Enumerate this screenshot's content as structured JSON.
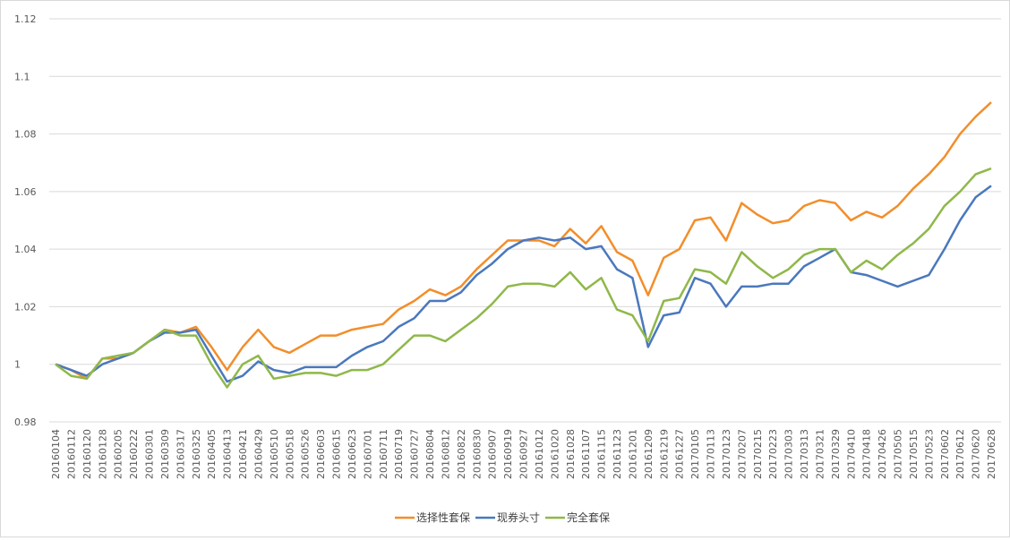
{
  "chart_data": {
    "type": "line",
    "categories": [
      "20160104",
      "20160112",
      "20160120",
      "20160128",
      "20160205",
      "20160222",
      "20160301",
      "20160309",
      "20160317",
      "20160325",
      "20160405",
      "20160413",
      "20160421",
      "20160429",
      "20160510",
      "20160518",
      "20160526",
      "20160603",
      "20160615",
      "20160623",
      "20160701",
      "20160711",
      "20160719",
      "20160727",
      "20160804",
      "20160812",
      "20160822",
      "20160830",
      "20160907",
      "20160919",
      "20160927",
      "20161012",
      "20161020",
      "20161028",
      "20161107",
      "20161115",
      "20161123",
      "20161201",
      "20161209",
      "20161219",
      "20161227",
      "20170105",
      "20170113",
      "20170123",
      "20170207",
      "20170215",
      "20170223",
      "20170303",
      "20170313",
      "20170321",
      "20170329",
      "20170410",
      "20170418",
      "20170426",
      "20170505",
      "20170515",
      "20170523",
      "20170602",
      "20170612",
      "20170620",
      "20170628"
    ],
    "series": [
      {
        "name": "选择性套保",
        "color": "#f28e2b",
        "values": [
          1.0,
          0.998,
          0.995,
          1.002,
          1.002,
          1.004,
          1.008,
          1.012,
          1.011,
          1.013,
          1.006,
          0.998,
          1.006,
          1.012,
          1.006,
          1.004,
          1.007,
          1.01,
          1.01,
          1.012,
          1.013,
          1.014,
          1.019,
          1.022,
          1.026,
          1.024,
          1.027,
          1.033,
          1.038,
          1.043,
          1.043,
          1.043,
          1.041,
          1.047,
          1.042,
          1.048,
          1.039,
          1.036,
          1.024,
          1.037,
          1.04,
          1.05,
          1.051,
          1.043,
          1.056,
          1.052,
          1.049,
          1.05,
          1.055,
          1.057,
          1.056,
          1.05,
          1.053,
          1.051,
          1.055,
          1.061,
          1.066,
          1.072,
          1.08,
          1.086,
          1.091
        ]
      },
      {
        "name": "现券头寸",
        "color": "#4a78bd",
        "values": [
          1.0,
          0.998,
          0.996,
          1.0,
          1.002,
          1.004,
          1.008,
          1.011,
          1.011,
          1.012,
          1.003,
          0.994,
          0.996,
          1.001,
          0.998,
          0.997,
          0.999,
          0.999,
          0.999,
          1.003,
          1.006,
          1.008,
          1.013,
          1.016,
          1.022,
          1.022,
          1.025,
          1.031,
          1.035,
          1.04,
          1.043,
          1.044,
          1.043,
          1.044,
          1.04,
          1.041,
          1.033,
          1.03,
          1.006,
          1.017,
          1.018,
          1.03,
          1.028,
          1.02,
          1.027,
          1.027,
          1.028,
          1.028,
          1.034,
          1.037,
          1.04,
          1.032,
          1.031,
          1.029,
          1.027,
          1.029,
          1.031,
          1.04,
          1.05,
          1.058,
          1.062
        ]
      },
      {
        "name": "完全套保",
        "color": "#8fb84a",
        "values": [
          1.0,
          0.996,
          0.995,
          1.002,
          1.003,
          1.004,
          1.008,
          1.012,
          1.01,
          1.01,
          1.0,
          0.992,
          1.0,
          1.003,
          0.995,
          0.996,
          0.997,
          0.997,
          0.996,
          0.998,
          0.998,
          1.0,
          1.005,
          1.01,
          1.01,
          1.008,
          1.012,
          1.016,
          1.021,
          1.027,
          1.028,
          1.028,
          1.027,
          1.032,
          1.026,
          1.03,
          1.019,
          1.017,
          1.008,
          1.022,
          1.023,
          1.033,
          1.032,
          1.028,
          1.039,
          1.034,
          1.03,
          1.033,
          1.038,
          1.04,
          1.04,
          1.032,
          1.036,
          1.033,
          1.038,
          1.042,
          1.047,
          1.055,
          1.06,
          1.066,
          1.068
        ]
      }
    ],
    "ylim": [
      0.98,
      1.12
    ],
    "yticks": [
      0.98,
      1,
      1.02,
      1.04,
      1.06,
      1.08,
      1.1,
      1.12
    ],
    "grid": true
  }
}
